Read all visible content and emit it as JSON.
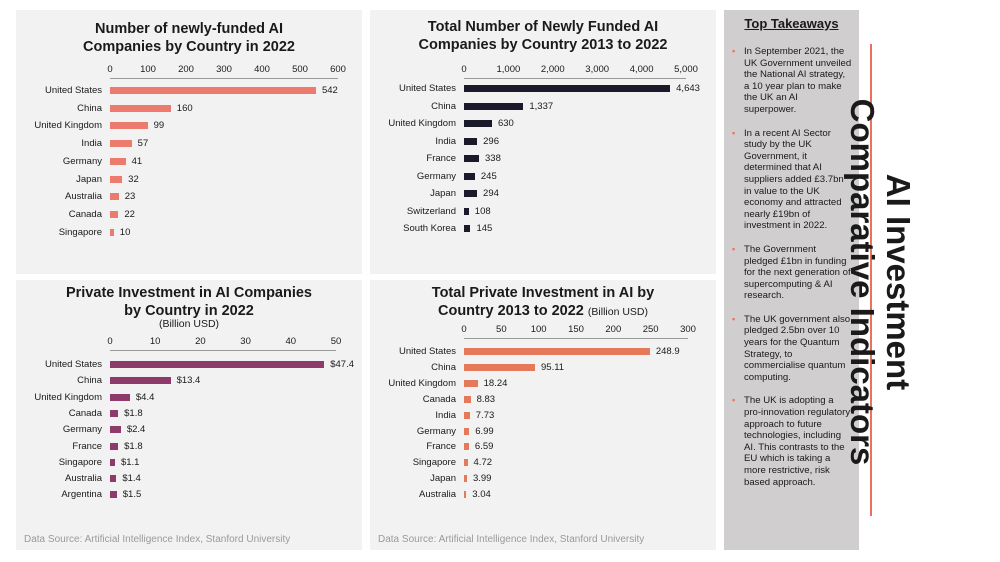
{
  "chart_data": [
    {
      "type": "bar",
      "orientation": "horizontal",
      "title": "Number of newly-funded AI Companies by Country in 2022",
      "categories": [
        "United States",
        "China",
        "United Kingdom",
        "India",
        "Germany",
        "Japan",
        "Australia",
        "Canada",
        "Singapore"
      ],
      "values": [
        542,
        160,
        99,
        57,
        41,
        32,
        23,
        22,
        10
      ],
      "value_labels": [
        "542",
        "160",
        "99",
        "57",
        "41",
        "32",
        "23",
        "22",
        "10"
      ],
      "ticks": [
        "0",
        "100",
        "200",
        "300",
        "400",
        "500",
        "600"
      ],
      "xlim": [
        0,
        600
      ],
      "color": "#ec7b6e"
    },
    {
      "type": "bar",
      "orientation": "horizontal",
      "title": "Total Number of Newly Funded AI Companies by Country 2013 to 2022",
      "categories": [
        "United States",
        "China",
        "United Kingdom",
        "India",
        "France",
        "Germany",
        "Japan",
        "Switzerland",
        "South Korea"
      ],
      "values": [
        4643,
        1337,
        630,
        296,
        338,
        245,
        294,
        108,
        145
      ],
      "value_labels": [
        "4,643",
        "1,337",
        "630",
        "296",
        "338",
        "245",
        "294",
        "108",
        "145"
      ],
      "ticks": [
        "0",
        "1,000",
        "2,000",
        "3,000",
        "4,000",
        "5,000"
      ],
      "xlim": [
        0,
        5000
      ],
      "color": "#1b1a2b"
    },
    {
      "type": "bar",
      "orientation": "horizontal",
      "title": "Private Investment in AI Companies by Country in 2022",
      "subtitle": "(Billion USD)",
      "categories": [
        "United States",
        "China",
        "United Kingdom",
        "Canada",
        "Germany",
        "France",
        "Singapore",
        "Australia",
        "Argentina"
      ],
      "values": [
        47.4,
        13.4,
        4.4,
        1.8,
        2.4,
        1.8,
        1.1,
        1.4,
        1.5
      ],
      "value_labels": [
        "$47.4",
        "$13.4",
        "$4.4",
        "$1.8",
        "$2.4",
        "$1.8",
        "$1.1",
        "$1.4",
        "$1.5"
      ],
      "ticks": [
        "0",
        "10",
        "20",
        "30",
        "40",
        "50"
      ],
      "xlim": [
        0,
        50
      ],
      "color": "#8e3a6b"
    },
    {
      "type": "bar",
      "orientation": "horizontal",
      "title": "Total Private Investment in AI by Country 2013 to 2022",
      "subtitle": "(Billion USD)",
      "categories": [
        "United States",
        "China",
        "United Kingdom",
        "Canada",
        "India",
        "Germany",
        "France",
        "Singapore",
        "Japan",
        "Australia"
      ],
      "values": [
        248.9,
        95.11,
        18.24,
        8.83,
        7.73,
        6.99,
        6.59,
        4.72,
        3.99,
        3.04
      ],
      "value_labels": [
        "248.9",
        "95.11",
        "18.24",
        "8.83",
        "7.73",
        "6.99",
        "6.59",
        "4.72",
        "3.99",
        "3.04"
      ],
      "ticks": [
        "0",
        "50",
        "100",
        "150",
        "200",
        "250",
        "300"
      ],
      "xlim": [
        0,
        300
      ],
      "color": "#e57a5a"
    }
  ],
  "titles": {
    "c1_line1": "Number of newly-funded AI",
    "c1_line2": "Companies by Country in 2022",
    "c2_line1": "Total Number of Newly Funded AI",
    "c2_line2": "Companies by Country 2013 to 2022",
    "c3_line1": "Private Investment in AI Companies",
    "c3_line2": "by Country in 2022",
    "c3_sub": "(Billion USD)",
    "c4_line1": "Total Private Investment in AI by",
    "c4_line2": "Country 2013 to 2022",
    "c4_sub": "(Billion USD)"
  },
  "sources": {
    "left": "Data Source: Artificial Intelligence Index, Stanford University",
    "middle": "Data Source: Artificial Intelligence Index, Stanford University"
  },
  "takeaways": {
    "title": "Top Takeaways",
    "items": [
      "In September 2021, the UK Government unveiled the National AI strategy, a 10 year plan to make the UK an AI superpower.",
      "In a recent AI Sector study by the UK Government, it determined that AI suppliers added £3.7bn in value to the UK economy and attracted nearly £19bn of investment in 2022.",
      "The Government pledged £1bn in funding for the next generation of supercomputing & AI research.",
      "The UK government also pledged 2.5bn over 10 years for the Quantum Strategy, to commercialise quantum computing.",
      "The UK is adopting a pro-innovation regulatory approach to future technologies, including AI.  This contrasts to the EU which is taking a more restrictive, risk based approach."
    ]
  },
  "side_title": {
    "line1": "AI Investment",
    "line2": "Comparative Indicators"
  },
  "colors": {
    "accent": "#e8735a",
    "panel": "#f2f2f2",
    "takeaway_panel": "#d0cece"
  }
}
